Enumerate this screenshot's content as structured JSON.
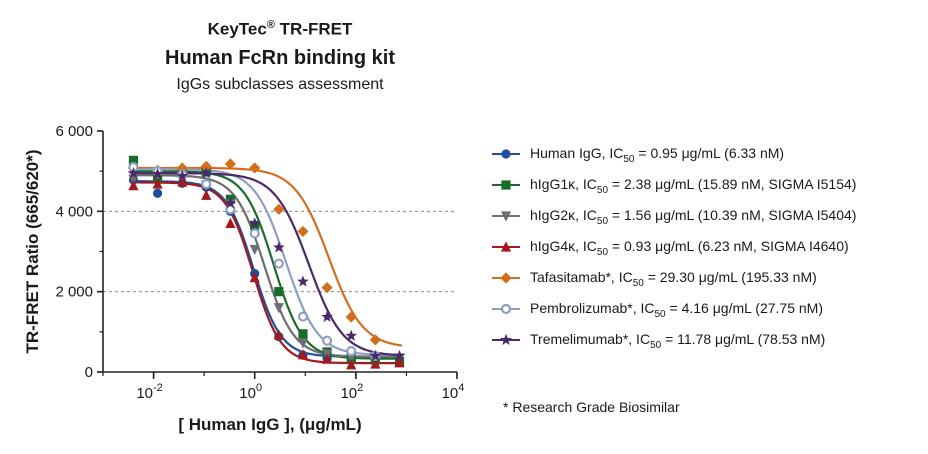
{
  "header": {
    "brand": "KeyTec",
    "brand_mark": "®",
    "brand_suffix": " TR-FRET",
    "product": "Human FcRn binding kit",
    "subtitle": "IgGs subclasses assessment"
  },
  "footnote": "*  Research Grade Biosimilar",
  "chart_data": {
    "type": "scatter",
    "title": "",
    "xlabel": "[ Human IgG ],  (μg/mL)",
    "ylabel": "TR-FRET Ratio (665/620*)",
    "x_scale": "log",
    "xlim": [
      0.001,
      10000
    ],
    "ylim": [
      0,
      6000
    ],
    "x_ticks": [
      {
        "value": 0.01,
        "base": "10",
        "exp": "-2"
      },
      {
        "value": 1,
        "base": "10",
        "exp": "0"
      },
      {
        "value": 100,
        "base": "10",
        "exp": "2"
      },
      {
        "value": 10000,
        "base": "10",
        "exp": "4"
      }
    ],
    "y_ticks": [
      {
        "value": 0,
        "label": "0"
      },
      {
        "value": 2000,
        "label": "2 000"
      },
      {
        "value": 4000,
        "label": "4 000"
      },
      {
        "value": 6000,
        "label": "6 000"
      }
    ],
    "gridlines": [
      2000,
      4000
    ],
    "x": [
      0.004,
      0.012,
      0.037,
      0.11,
      0.33,
      1,
      3,
      9,
      27,
      81,
      243,
      729
    ],
    "legend_position": "right",
    "series": [
      {
        "name": "Human IgG",
        "ic50_label": "0.95 μg/mL (6.33 nM)",
        "ic50": 0.95,
        "top": 4750,
        "bottom": 380,
        "hill": 1.6,
        "color": "#1f4e9c",
        "marker": "circle",
        "values": [
          4780,
          4450,
          4700,
          4600,
          4000,
          2450,
          880,
          420,
          330,
          300,
          280,
          290
        ]
      },
      {
        "name": "hIgG1κ",
        "ic50_label": "2.38 μg/mL (15.89 nM, SIGMA I5154)",
        "ic50": 2.38,
        "top": 5000,
        "bottom": 330,
        "hill": 1.5,
        "color": "#1a6b2a",
        "marker": "square",
        "values": [
          5270,
          4850,
          4950,
          4980,
          4300,
          3650,
          2000,
          950,
          500,
          350,
          300,
          260
        ]
      },
      {
        "name": "hIgG2κ",
        "ic50_label": "1.56 μg/mL (10.39 nM, SIGMA I5404)",
        "ic50": 1.56,
        "top": 4900,
        "bottom": 380,
        "hill": 1.5,
        "color": "#6d6e71",
        "marker": "triangle-down",
        "values": [
          4800,
          4900,
          4820,
          4650,
          4180,
          3050,
          1600,
          720,
          450,
          360,
          380,
          350
        ]
      },
      {
        "name": "hIgG4κ",
        "ic50_label": "0.93 μg/mL (6.23 nM, SIGMA I4640)",
        "ic50": 0.93,
        "top": 4720,
        "bottom": 220,
        "hill": 1.6,
        "color": "#a3191f",
        "marker": "triangle-up",
        "values": [
          4640,
          4680,
          4730,
          4400,
          3700,
          2350,
          920,
          430,
          320,
          180,
          200,
          230
        ]
      },
      {
        "name": "Tafasitamab*",
        "ic50_label": "29.30 μg/mL (195.33 nM)",
        "ic50": 29.3,
        "top": 5080,
        "bottom": 600,
        "hill": 1.3,
        "color": "#d46e1f",
        "marker": "diamond",
        "values": [
          5080,
          5020,
          5080,
          5120,
          5180,
          5080,
          4050,
          3500,
          2100,
          1370,
          800,
          null
        ]
      },
      {
        "name": "Pembrolizumab*",
        "ic50_label": "4.16 μg/mL (27.75 nM)",
        "ic50": 4.16,
        "top": 5050,
        "bottom": 420,
        "hill": 1.4,
        "color": "#8e9fc3",
        "marker": "circle-open",
        "values": [
          5100,
          5000,
          4920,
          4680,
          4050,
          3450,
          2700,
          1380,
          780,
          520,
          400,
          null
        ]
      },
      {
        "name": "Tremelimumab*",
        "ic50_label": "11.78 μg/mL (78.53 nM)",
        "ic50": 11.78,
        "top": 4950,
        "bottom": 400,
        "hill": 1.3,
        "color": "#4b2a6b",
        "marker": "star",
        "values": [
          4950,
          4930,
          4880,
          4950,
          4200,
          3700,
          3100,
          2250,
          1370,
          900,
          400,
          400
        ]
      }
    ]
  }
}
